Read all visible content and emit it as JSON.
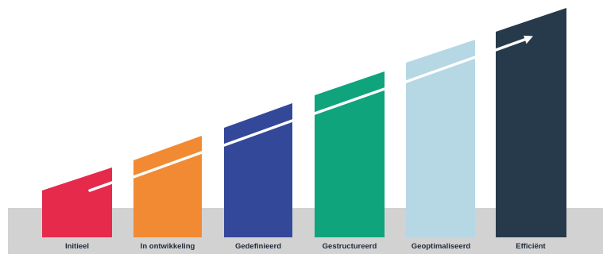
{
  "diagram": {
    "stages": [
      {
        "label": "Initieel",
        "color": "#e52a4c"
      },
      {
        "label": "In ontwikkeling",
        "color": "#f28a33"
      },
      {
        "label": "Gedefinieerd",
        "color": "#34489a"
      },
      {
        "label": "Gestructureerd",
        "color": "#0fa47b"
      },
      {
        "label": "Geoptimaliseerd",
        "color": "#b6d7e4"
      },
      {
        "label": "Efficiënt",
        "color": "#263a4b"
      }
    ],
    "base_band_color": "#d2d2d2",
    "arrow_color": "#ffffff"
  }
}
